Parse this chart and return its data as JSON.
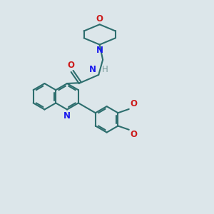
{
  "bg_color": "#dce6ea",
  "bond_color": "#2d6e6e",
  "n_color": "#1a1aee",
  "o_color": "#cc1a1a",
  "h_color": "#7a9a9a",
  "line_width": 1.5,
  "font_size": 8.5,
  "xlim": [
    0,
    10
  ],
  "ylim": [
    0,
    10
  ]
}
